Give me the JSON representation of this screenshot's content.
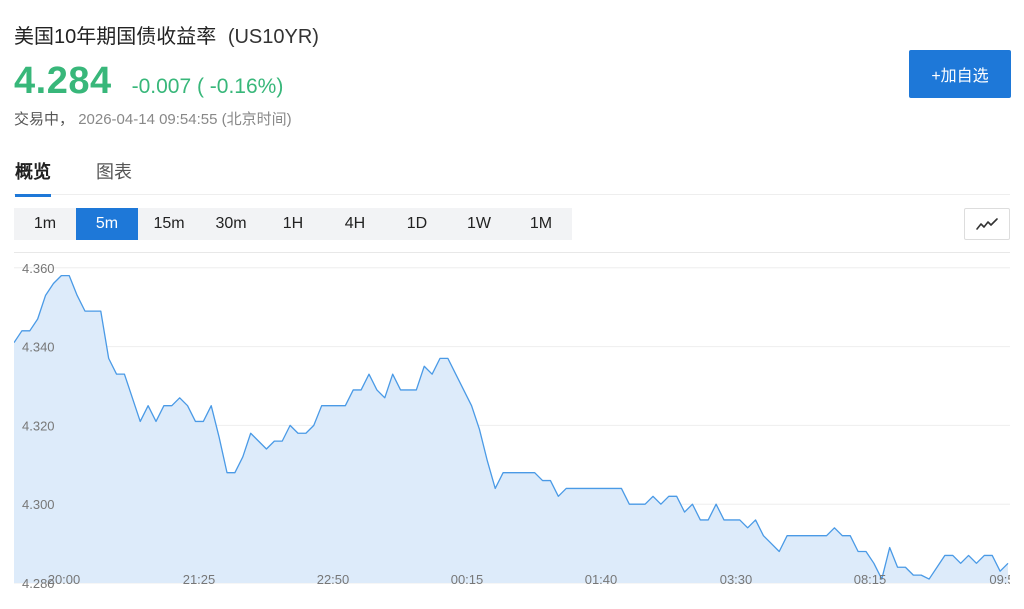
{
  "header": {
    "title": "美国10年期国债收益率",
    "code": "(US10YR)",
    "price": "4.284",
    "change": "-0.007 ( -0.16%)",
    "status": "交易中，",
    "datetime": "2026-04-14 09:54:55",
    "timezone": "(北京时间)",
    "add_button": "+加自选"
  },
  "tabs": [
    {
      "label": "概览",
      "active": true
    },
    {
      "label": "图表",
      "active": false
    }
  ],
  "intervals": [
    {
      "label": "1m",
      "active": false
    },
    {
      "label": "5m",
      "active": true
    },
    {
      "label": "15m",
      "active": false
    },
    {
      "label": "30m",
      "active": false
    },
    {
      "label": "1H",
      "active": false
    },
    {
      "label": "4H",
      "active": false
    },
    {
      "label": "1D",
      "active": false
    },
    {
      "label": "1W",
      "active": false
    },
    {
      "label": "1M",
      "active": false
    }
  ],
  "chart_type_icon": "line-chart-icon",
  "colors": {
    "accent": "#1e78d8",
    "up_down_green": "#38b77a",
    "line": "#4a9ae6",
    "fill": "#ddebfa"
  },
  "chart_data": {
    "type": "area",
    "title": "",
    "xlabel": "",
    "ylabel": "",
    "ylim": [
      4.28,
      4.364
    ],
    "grid": true,
    "y_ticks": [
      "4.360",
      "4.340",
      "4.320",
      "4.300",
      "4.280"
    ],
    "x_ticks": [
      "20:00",
      "21:25",
      "22:50",
      "00:15",
      "01:40",
      "03:30",
      "08:15",
      "09:5"
    ],
    "values": [
      4.341,
      4.344,
      4.344,
      4.347,
      4.353,
      4.356,
      4.358,
      4.358,
      4.353,
      4.349,
      4.349,
      4.349,
      4.337,
      4.333,
      4.333,
      4.327,
      4.321,
      4.325,
      4.321,
      4.325,
      4.325,
      4.327,
      4.325,
      4.321,
      4.321,
      4.325,
      4.317,
      4.308,
      4.308,
      4.312,
      4.318,
      4.316,
      4.314,
      4.316,
      4.316,
      4.32,
      4.318,
      4.318,
      4.32,
      4.325,
      4.325,
      4.325,
      4.325,
      4.329,
      4.329,
      4.333,
      4.329,
      4.327,
      4.333,
      4.329,
      4.329,
      4.329,
      4.335,
      4.333,
      4.337,
      4.337,
      4.333,
      4.329,
      4.325,
      4.319,
      4.311,
      4.304,
      4.308,
      4.308,
      4.308,
      4.308,
      4.308,
      4.306,
      4.306,
      4.302,
      4.304,
      4.304,
      4.304,
      4.304,
      4.304,
      4.304,
      4.304,
      4.304,
      4.3,
      4.3,
      4.3,
      4.302,
      4.3,
      4.302,
      4.302,
      4.298,
      4.3,
      4.296,
      4.296,
      4.3,
      4.296,
      4.296,
      4.296,
      4.294,
      4.296,
      4.292,
      4.29,
      4.288,
      4.292,
      4.292,
      4.292,
      4.292,
      4.292,
      4.292,
      4.294,
      4.292,
      4.292,
      4.288,
      4.288,
      4.285,
      4.281,
      4.289,
      4.284,
      4.284,
      4.282,
      4.282,
      4.281,
      4.284,
      4.287,
      4.287,
      4.285,
      4.287,
      4.285,
      4.287,
      4.287,
      4.283,
      4.285
    ]
  }
}
